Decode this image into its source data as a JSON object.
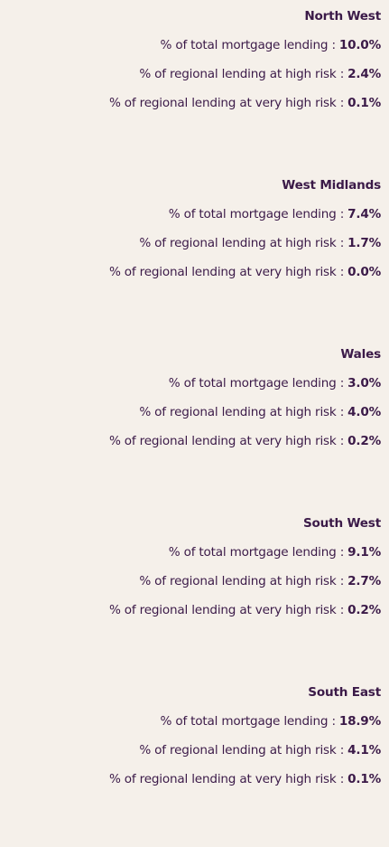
{
  "regions": [
    {
      "name": "North West",
      "rows": [
        {
          "label": "% of total mortgage lending :",
          "value": "10.0%"
        },
        {
          "label": "% of regional lending at high risk :",
          "value": "2.4%"
        },
        {
          "label": "% of regional lending at very high risk :",
          "value": "0.1%"
        }
      ]
    },
    {
      "name": "West Midlands",
      "rows": [
        {
          "label": "% of total mortgage lending :",
          "value": "7.4%"
        },
        {
          "label": "% of regional lending at high risk :",
          "value": "1.7%"
        },
        {
          "label": "% of regional lending at very high risk :",
          "value": "0.0%"
        }
      ]
    },
    {
      "name": "Wales",
      "rows": [
        {
          "label": "% of total mortgage lending :",
          "value": "3.0%"
        },
        {
          "label": "% of regional lending at high risk :",
          "value": "4.0%"
        },
        {
          "label": "% of regional lending at very high risk :",
          "value": "0.2%"
        }
      ]
    },
    {
      "name": "South West",
      "rows": [
        {
          "label": "% of total mortgage lending :",
          "value": "9.1%"
        },
        {
          "label": "% of regional lending at high risk :",
          "value": "2.7%"
        },
        {
          "label": "% of regional lending at very high risk :",
          "value": "0.2%"
        }
      ]
    },
    {
      "name": "South East",
      "rows": [
        {
          "label": "% of total mortgage lending :",
          "value": "18.9%"
        },
        {
          "label": "% of regional lending at high risk :",
          "value": "4.1%"
        },
        {
          "label": "% of regional lending at very high risk :",
          "value": "0.1%"
        }
      ]
    }
  ]
}
